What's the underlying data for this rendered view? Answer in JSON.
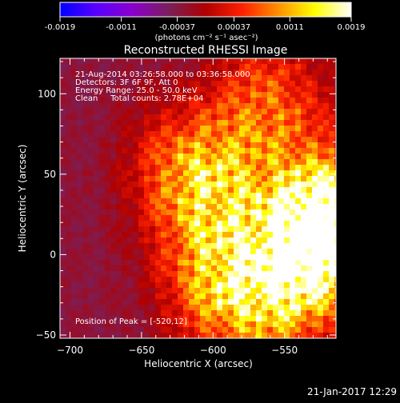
{
  "colorbar": {
    "ticks": [
      "-0.0019",
      "-0.0011",
      "-0.00037",
      "0.00037",
      "0.0011",
      "0.0019"
    ],
    "unit_label": "(photons cm⁻² s⁻¹ asec⁻²)",
    "stops": [
      "#0000ff",
      "#5a00ff",
      "#8a00cc",
      "#7a1f5a",
      "#b00000",
      "#ff2000",
      "#ff9000",
      "#ffff00",
      "#ffffff"
    ]
  },
  "footer": {
    "timestamp": "21-Jan-2017 12:29"
  },
  "annotations": {
    "line1": "21-Aug-2014 03:26:58.000 to 03:36:58.000",
    "line2": "Detectors: 3F 6F 9F, Att 0",
    "line3": "Energy Range: 25.0 - 50.0 keV",
    "line4": "Clean     Total counts: 2.78E+04",
    "peak": "Position of Peak = [-520,12]"
  },
  "chart_data": {
    "type": "heatmap",
    "title": "Reconstructed RHESSI Image",
    "xlabel": "Heliocentric X (arcsec)",
    "ylabel": "Heliocentric Y (arcsec)",
    "xlim": [
      -707,
      -514
    ],
    "ylim": [
      -52,
      122
    ],
    "xticks": [
      -700,
      -650,
      -600,
      -550
    ],
    "yticks": [
      -50,
      0,
      50,
      100
    ],
    "xtick_labels": [
      "−700",
      "−650",
      "−600",
      "−550"
    ],
    "ytick_labels": [
      "−50",
      "0",
      "50",
      "100"
    ],
    "colorbar_range": [
      -0.0019,
      0.0019
    ],
    "peak_position": [
      -520,
      12
    ],
    "bright_regions": [
      {
        "x": -520,
        "y": 12,
        "level": 1.0
      },
      {
        "x": -530,
        "y": 30,
        "level": 0.75
      },
      {
        "x": -545,
        "y": -20,
        "level": 0.7
      },
      {
        "x": -560,
        "y": 95,
        "level": 0.6
      },
      {
        "x": -585,
        "y": -30,
        "level": 0.65
      },
      {
        "x": -600,
        "y": 45,
        "level": 0.55
      },
      {
        "x": -620,
        "y": 55,
        "level": 0.45
      },
      {
        "x": -600,
        "y": 0,
        "level": 0.5
      }
    ]
  }
}
